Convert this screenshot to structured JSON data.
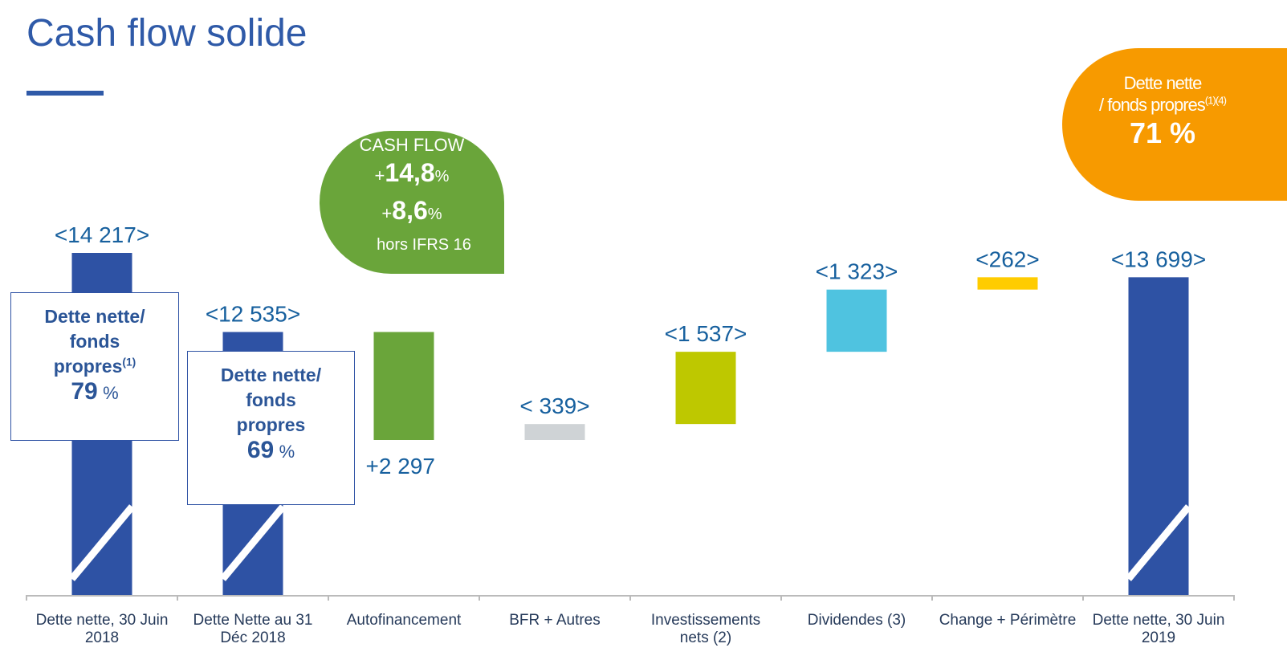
{
  "title": "Cash flow solide",
  "chart_data": {
    "type": "waterfall",
    "categories": [
      "Dette nette, 30 Juin 2018",
      "Dette Nette au 31 Déc 2018",
      "Autofinancement",
      "BFR + Autres",
      "Investissements nets (2)",
      "Dividendes (3)",
      "Change + Périmètre",
      "Dette nette, 30 Juin 2019"
    ],
    "values": [
      -14217,
      -12535,
      2297,
      -339,
      -1537,
      -1323,
      -262,
      -13699
    ],
    "value_labels": [
      "<14 217>",
      "<12 535>",
      "+2 297",
      "< 339>",
      "<1 537>",
      "<1 323>",
      "<262>",
      "<13 699>"
    ],
    "measure": [
      "total",
      "total",
      "relative",
      "relative",
      "relative",
      "relative",
      "relative",
      "total"
    ],
    "colors": [
      "#2e52a4",
      "#2e52a4",
      "#6aa53a",
      "#cfd3d6",
      "#bec800",
      "#4fc3e0",
      "#ffcc00",
      "#2e52a4"
    ]
  },
  "annotations": {
    "cash_flow": {
      "title": "CASH FLOW",
      "lines": [
        {
          "sign": "+",
          "value": "14,8",
          "unit": "%"
        },
        {
          "sign": "+",
          "value": "8,6",
          "unit": "%"
        }
      ],
      "note": "hors IFRS 16"
    },
    "ratio_2019": {
      "line1": "Dette nette",
      "line2": "/ fonds propres",
      "sup": "(1)(4)",
      "value": "71 %"
    },
    "boxes": [
      {
        "text": "Dette nette/ fonds propres",
        "sup": "(1)",
        "value": "79",
        "unit": "%"
      },
      {
        "text": "Dette nette/ fonds propres",
        "value": "69",
        "unit": "%"
      }
    ]
  }
}
